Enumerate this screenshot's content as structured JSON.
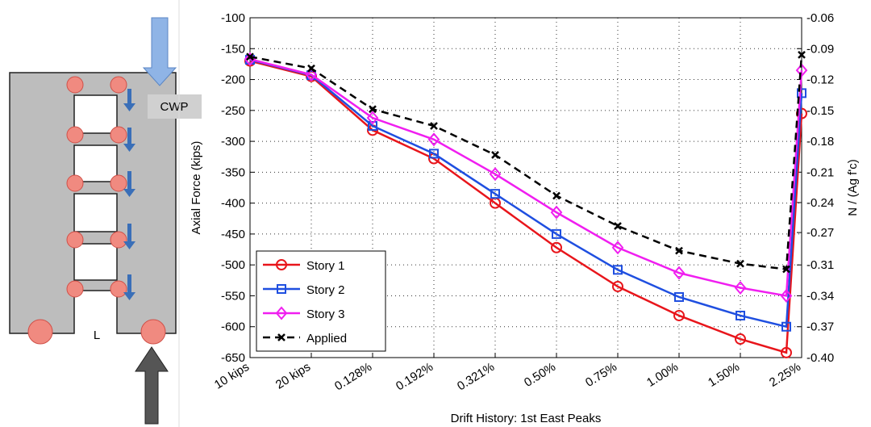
{
  "diagram": {
    "load_label": "CWP",
    "span_label": "L"
  },
  "chart_data": {
    "type": "line",
    "xlabel": "Drift History: 1st East Peaks",
    "ylabel": "Axial Force (kips)",
    "y2label": "N / (Ag f'c)",
    "x": [
      0,
      1,
      2,
      3,
      4,
      5,
      6,
      7,
      8,
      8.75,
      9
    ],
    "xlim": [
      0,
      9
    ],
    "xticks": [
      {
        "value": 0,
        "label": "10 kips"
      },
      {
        "value": 1,
        "label": "20 kips"
      },
      {
        "value": 2,
        "label": "0.128%"
      },
      {
        "value": 3,
        "label": "0.192%"
      },
      {
        "value": 4,
        "label": "0.321%"
      },
      {
        "value": 5,
        "label": "0.50%"
      },
      {
        "value": 6,
        "label": "0.75%"
      },
      {
        "value": 7,
        "label": "1.00%"
      },
      {
        "value": 8,
        "label": "1.50%"
      },
      {
        "value": 9,
        "label": "2.25%"
      }
    ],
    "ylim": [
      -650,
      -100
    ],
    "yticks": [
      -100,
      -150,
      -200,
      -250,
      -300,
      -350,
      -400,
      -450,
      -500,
      -550,
      -600,
      -650
    ],
    "y2lim": [
      -0.4,
      -0.06
    ],
    "y2ticks": [
      {
        "value": -0.06,
        "label": "-0.06"
      },
      {
        "value": -0.0909,
        "label": "-0.09"
      },
      {
        "value": -0.1218,
        "label": "-0.12"
      },
      {
        "value": -0.1527,
        "label": "-0.15"
      },
      {
        "value": -0.1836,
        "label": "-0.18"
      },
      {
        "value": -0.2145,
        "label": "-0.21"
      },
      {
        "value": -0.2449,
        "label": "-0.24"
      },
      {
        "value": -0.2749,
        "label": "-0.27"
      },
      {
        "value": -0.3073,
        "label": "-0.31"
      },
      {
        "value": -0.3382,
        "label": "-0.34"
      },
      {
        "value": -0.3691,
        "label": "-0.37"
      },
      {
        "value": -0.4,
        "label": "-0.40"
      }
    ],
    "grid": true,
    "legend": "lower-left",
    "series": [
      {
        "name": "Story 1",
        "color": "#e8151b",
        "marker": "circle",
        "values": [
          -170,
          -195,
          -282,
          -328,
          -400,
          -472,
          -535,
          -582,
          -620,
          -642,
          -255
        ]
      },
      {
        "name": "Story 2",
        "color": "#1f4fe0",
        "marker": "square",
        "values": [
          -168,
          -193,
          -275,
          -320,
          -385,
          -450,
          -508,
          -552,
          -582,
          -600,
          -222
        ]
      },
      {
        "name": "Story 3",
        "color": "#f01ef0",
        "marker": "diamond",
        "values": [
          -167,
          -192,
          -262,
          -297,
          -353,
          -415,
          -472,
          -513,
          -537,
          -550,
          -185
        ]
      },
      {
        "name": "Applied",
        "color": "#000000",
        "marker": "x",
        "dashed": true,
        "values": [
          -163,
          -182,
          -248,
          -275,
          -322,
          -388,
          -437,
          -477,
          -498,
          -507,
          -160
        ]
      }
    ]
  }
}
